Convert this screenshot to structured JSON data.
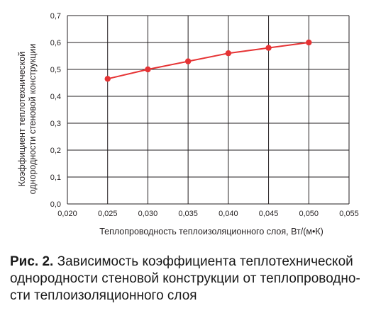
{
  "chart_data": {
    "type": "line",
    "x": [
      0.025,
      0.03,
      0.035,
      0.04,
      0.045,
      0.05
    ],
    "series": [
      {
        "values": [
          0.465,
          0.5,
          0.53,
          0.56,
          0.58,
          0.6
        ]
      }
    ],
    "xlabel": "Теплопроводность теплоизоляционного слоя, Вт/(м•К)",
    "ylabel_line1": "Коэффициент теплотехнической",
    "ylabel_line2": "однородности стеновой конструкции",
    "xlim": [
      0.02,
      0.055
    ],
    "ylim": [
      0,
      0.7
    ],
    "xticks": [
      "0,020",
      "0,025",
      "0,030",
      "0,035",
      "0,040",
      "0,045",
      "0,050",
      "0,055"
    ],
    "yticks": [
      "0,0",
      "0,1",
      "0,2",
      "0,3",
      "0,4",
      "0,5",
      "0,6",
      "0,7"
    ],
    "grid": true,
    "line_color": "#e63334"
  },
  "caption": {
    "prefix": "Рис. 2.",
    "text": "Зависимость коэффициента теплотехнической однородности стеновой конструкции от теплопроводно-сти теплоизоляционного слоя"
  }
}
